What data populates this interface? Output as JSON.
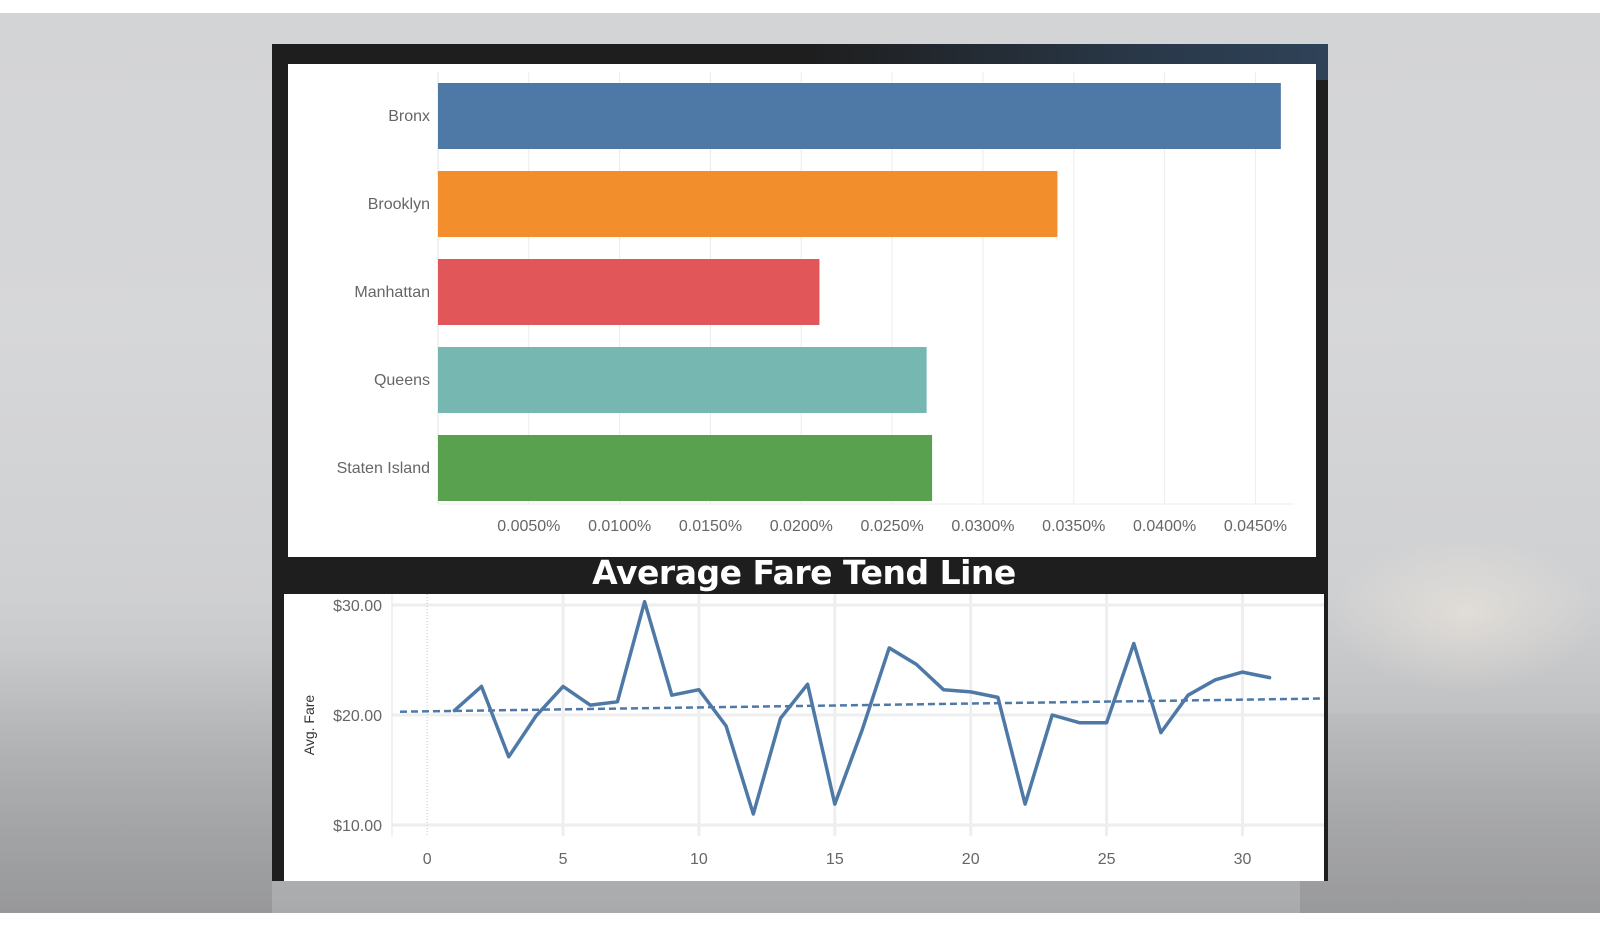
{
  "background": {
    "frame_color": "#1e1e1e"
  },
  "title": "Average Fare Tend Line",
  "chart_data": [
    {
      "type": "bar",
      "orientation": "horizontal",
      "categories": [
        "Bronx",
        "Brooklyn",
        "Manhattan",
        "Queens",
        "Staten Island"
      ],
      "values": [
        0.0464,
        0.0341,
        0.021,
        0.0269,
        0.0272
      ],
      "colors": [
        "#4e79a7",
        "#f28e2b",
        "#e15759",
        "#76b7b2",
        "#59a14f"
      ],
      "value_unit": "%",
      "xlim": [
        0,
        0.0485
      ],
      "xticks": [
        0.005,
        0.01,
        0.015,
        0.02,
        0.025,
        0.03,
        0.035,
        0.04,
        0.045
      ],
      "xtick_labels": [
        "0.0050%",
        "0.0100%",
        "0.0150%",
        "0.0200%",
        "0.0250%",
        "0.0300%",
        "0.0350%",
        "0.0400%",
        "0.0450%"
      ],
      "grid": true,
      "title": "",
      "xlabel": "",
      "ylabel": ""
    },
    {
      "type": "line",
      "x": [
        1,
        2,
        3,
        4,
        5,
        6,
        7,
        8,
        9,
        10,
        11,
        12,
        13,
        14,
        15,
        16,
        17,
        18,
        19,
        20,
        21,
        22,
        23,
        24,
        25,
        26,
        27,
        28,
        29,
        30,
        31
      ],
      "series": [
        {
          "values": [
            20.4,
            22.6,
            16.2,
            19.9,
            22.6,
            20.9,
            21.2,
            30.3,
            21.8,
            22.3,
            19.0,
            11.0,
            19.7,
            22.8,
            11.9,
            18.6,
            26.1,
            24.6,
            22.3,
            22.1,
            21.6,
            11.9,
            20.0,
            19.3,
            19.3,
            26.5,
            18.4,
            21.8,
            23.2,
            23.9,
            23.4
          ],
          "color": "#4e79a7",
          "style": "solid"
        }
      ],
      "trend_line": {
        "start": [
          -1,
          20.3
        ],
        "end": [
          33,
          21.5
        ],
        "style": "dashed",
        "color": "#4e79a7"
      },
      "xlim": [
        -1,
        33
      ],
      "ylim": [
        9,
        31
      ],
      "xticks": [
        0,
        5,
        10,
        15,
        20,
        25,
        30
      ],
      "yticks": [
        10,
        20,
        30
      ],
      "ytick_labels": [
        "$10.00",
        "$20.00",
        "$30.00"
      ],
      "ylabel": "Avg. Fare",
      "xlabel": "",
      "grid": true
    }
  ]
}
